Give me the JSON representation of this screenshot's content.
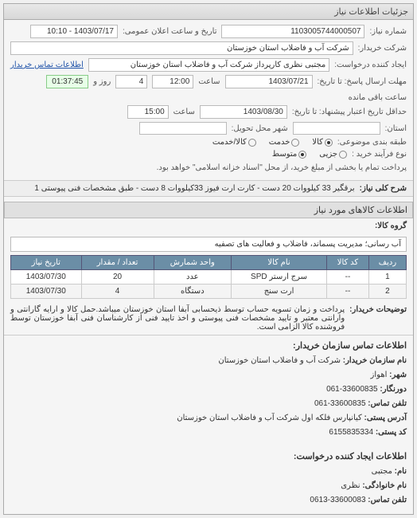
{
  "panel_title": "جزئیات اطلاعات نیاز",
  "rows": {
    "req_no_label": "شماره نیاز:",
    "req_no": "1103005744000507",
    "pub_time_label": "تاریخ و ساعت اعلان عمومی:",
    "pub_time": "1403/07/17 - 10:10",
    "buyer_label": "شرکت خریدار:",
    "buyer": "شرکت آب و فاضلاب استان خوزستان",
    "creator_label": "ایجاد کننده درخواست:",
    "creator": "مجتبی نظری کارپرداز شرکت آب و فاضلاب استان خوزستان",
    "contact_link": "اطلاعات تماس خریدار",
    "deadline_label": "مهلت ارسال پاسخ: تا تاریخ:",
    "deadline_date": "1403/07/21",
    "time_label": "ساعت",
    "deadline_time": "12:00",
    "remain_days": "4",
    "days_and": "روز و",
    "timer": "01:37:45",
    "remain_suffix": "ساعت باقی مانده",
    "validity_label": "حداقل تاریخ اعتبار پیشنهاد: تا تاریخ:",
    "validity_date": "1403/08/30",
    "validity_time": "15:00",
    "province_label": "استان:",
    "city_label": "شهر محل تحویل:",
    "pkg_label": "طبقه بندی موضوعی:",
    "pkg_goods": "کالا",
    "pkg_service": "خدمت",
    "pkg_both": "کالا/خدمت",
    "proc_label": "نوع فرآیند خرید :",
    "proc_small": "جزیی",
    "proc_mid": "متوسط",
    "proc_note": "پرداخت تمام یا بخشی از مبلغ خرید، از محل \"اسناد خزانه اسلامی\" خواهد بود."
  },
  "title_block": {
    "label": "شرح کلی نیاز:",
    "text": "برقگیر 33 کیلووات 20 دست - کارت ارت فیوز 33کیلووات 8 دست - طبق مشخصات فنی پیوستی 1"
  },
  "goods_header": "اطلاعات کالاهای مورد نیاز",
  "group_label": "گروه کالا:",
  "group_value": "آب رسانی؛ مدیریت پسماند، فاضلاب و فعالیت های تصفیه",
  "table": {
    "headers": [
      "ردیف",
      "کد کالا",
      "نام کالا",
      "واحد شمارش",
      "تعداد / مقدار",
      "تاریخ نیاز"
    ],
    "rows": [
      [
        "1",
        "--",
        "سرج ارستر SPD",
        "عدد",
        "20",
        "1403/07/30"
      ],
      [
        "2",
        "--",
        "ارت سنج",
        "دستگاه",
        "4",
        "1403/07/30"
      ]
    ]
  },
  "buyer_notes": {
    "label": "توضیحات خریدار:",
    "text": "پرداخت و زمان تسویه حساب توسط ذیحسابی آبفا استان خوزستان میباشد.حمل کالا و ارایه گارانتی و وارانتی معتبر و تایید مشخصات فنی پیوستی و اخذ تایید فنی از کارشناسان فنی آبفا خوزستان توسط فروشنده کالا الزامی است."
  },
  "contact": {
    "title": "اطلاعات تماس سازمان خریدار:",
    "items": [
      {
        "k": "نام سازمان خریدار:",
        "v": "شرکت آب و فاضلاب استان خوزستان"
      },
      {
        "k": "شهر:",
        "v": "اهواز"
      },
      {
        "k": "دورنگار:",
        "v": "33600835-061"
      },
      {
        "k": "تلفن تماس:",
        "v": "33600835-061"
      },
      {
        "k": "آدرس پستی:",
        "v": "کیانپارس فلکه اول شرکت آب و فاضلاب استان خوزستان"
      },
      {
        "k": "کد پستی:",
        "v": "6155835334"
      }
    ],
    "creator_title": "اطلاعات ایجاد کننده درخواست:",
    "creator_items": [
      {
        "k": "نام:",
        "v": "مجتبی"
      },
      {
        "k": "نام خانوادگی:",
        "v": "نظری"
      },
      {
        "k": "تلفن تماس:",
        "v": "33600083-0613"
      }
    ]
  },
  "colors": {
    "th_bg": "#6b8ea6",
    "th_fg": "#ffffff",
    "timer_bg": "#e8ffe8"
  }
}
